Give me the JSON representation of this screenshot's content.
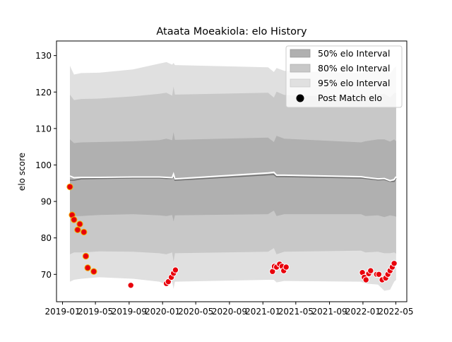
{
  "chart_data": {
    "type": "line",
    "title": "Ataata Moeakiola: elo History",
    "xlabel": "",
    "ylabel": "elo score",
    "xlim": [
      "2018-12-10",
      "2022-06-10"
    ],
    "ylim": [
      62.5,
      134
    ],
    "x_ticks": [
      "2019-01",
      "2019-05",
      "2019-09",
      "2020-01",
      "2020-05",
      "2020-09",
      "2021-01",
      "2021-05",
      "2021-09",
      "2022-01",
      "2022-05"
    ],
    "y_ticks": [
      70,
      80,
      90,
      100,
      110,
      120,
      130
    ],
    "grid": false,
    "legend": {
      "position": "top-right",
      "entries": [
        "50% elo Interval",
        "80% elo Interval",
        "95% elo Interval",
        "Post Match elo"
      ]
    },
    "colors": {
      "band50": "#b0b0b0",
      "band80": "#c8c8c8",
      "band95": "#e0e0e0",
      "mean_line": "#707070",
      "median_line": "#ffffff",
      "marker_fill": "#e8000b",
      "marker_early_fill": "#e8000b",
      "marker_early_edge": "#f0b000",
      "marker_edge": "#ffffff"
    },
    "bands": {
      "dates": [
        "2019-01-28",
        "2019-02-12",
        "2019-03-10",
        "2019-05-15",
        "2019-09-15",
        "2019-12-20",
        "2020-01-15",
        "2020-02-05",
        "2020-02-10",
        "2020-02-15",
        "2021-01-20",
        "2021-02-10",
        "2021-02-20",
        "2021-03-20",
        "2021-12-25",
        "2022-01-10",
        "2022-02-25",
        "2022-03-20",
        "2022-04-10",
        "2022-04-25",
        "2022-05-02"
      ],
      "upper95": [
        127.2,
        124.8,
        125.2,
        125.3,
        126.2,
        127.8,
        128.2,
        127.5,
        128,
        127.4,
        126.8,
        125.5,
        126.6,
        125.8,
        125.2,
        125.5,
        126.2,
        126.4,
        125,
        126.6,
        127
      ],
      "upper80": [
        119.3,
        117.8,
        118.1,
        118.2,
        118.8,
        119.5,
        119.8,
        119,
        121.5,
        119.3,
        119.8,
        118.5,
        120.1,
        119.2,
        118.5,
        118.8,
        119.3,
        119.5,
        118.5,
        119.7,
        119.8
      ],
      "upper50": [
        107,
        106,
        106.2,
        106.3,
        106.5,
        106.8,
        107.2,
        106.8,
        109,
        106.9,
        107.5,
        106.3,
        108,
        107.2,
        106.2,
        106.5,
        107,
        107,
        106.4,
        107,
        106.5
      ],
      "lower50": [
        85.5,
        86,
        86,
        86.3,
        86.5,
        86.2,
        86,
        86.3,
        84.5,
        86.2,
        86.5,
        87.5,
        86,
        86.5,
        86.5,
        86,
        86.2,
        85.7,
        86.2,
        86,
        85.8
      ],
      "lower80": [
        75.5,
        76,
        76,
        76.3,
        76.2,
        75.8,
        75.5,
        76,
        73.5,
        75.8,
        76.2,
        77.2,
        75.5,
        76.2,
        76.5,
        76,
        76.2,
        75.8,
        75.8,
        76,
        75.7
      ],
      "lower95": [
        68,
        68.5,
        68.8,
        69.2,
        68.8,
        68,
        67.2,
        68,
        66,
        68,
        68.5,
        68.5,
        67.8,
        68.2,
        68,
        67.5,
        67.2,
        65.5,
        65.8,
        68,
        68.5
      ],
      "mean": [
        95.8,
        95.8,
        96.2,
        96.3,
        96.4,
        96.4,
        96.3,
        96.3,
        96.7,
        95.8,
        97.3,
        97.4,
        96.8,
        96.8,
        96.4,
        96.3,
        95.9,
        96,
        95.5,
        95.5,
        96.4
      ],
      "median": [
        97,
        96.5,
        96.6,
        96.6,
        96.7,
        96.7,
        96.6,
        96.5,
        97.5,
        96.2,
        97.8,
        98,
        97.2,
        97.2,
        96.8,
        96.6,
        96.2,
        96.3,
        95.7,
        96,
        96.8
      ]
    },
    "series": [
      {
        "name": "Post Match elo",
        "points": [
          {
            "x": "2019-01-28",
            "y": 94,
            "early": true
          },
          {
            "x": "2019-02-05",
            "y": 86.3,
            "early": true
          },
          {
            "x": "2019-02-12",
            "y": 85,
            "early": true
          },
          {
            "x": "2019-02-25",
            "y": 82.2,
            "early": true
          },
          {
            "x": "2019-03-05",
            "y": 83.8,
            "early": true
          },
          {
            "x": "2019-03-20",
            "y": 81.6,
            "early": true
          },
          {
            "x": "2019-03-27",
            "y": 75,
            "early": true
          },
          {
            "x": "2019-04-03",
            "y": 71.8,
            "early": true
          },
          {
            "x": "2019-04-25",
            "y": 70.8,
            "early": true
          },
          {
            "x": "2019-09-07",
            "y": 67,
            "early": false
          },
          {
            "x": "2020-01-15",
            "y": 67.5,
            "early": false
          },
          {
            "x": "2020-01-22",
            "y": 68,
            "early": false
          },
          {
            "x": "2020-02-02",
            "y": 69.2,
            "early": false
          },
          {
            "x": "2020-02-10",
            "y": 70.3,
            "early": false
          },
          {
            "x": "2020-02-17",
            "y": 71.2,
            "early": false
          },
          {
            "x": "2021-02-05",
            "y": 70.8,
            "early": false
          },
          {
            "x": "2021-02-12",
            "y": 72.2,
            "early": false
          },
          {
            "x": "2021-02-20",
            "y": 72,
            "early": false
          },
          {
            "x": "2021-03-03",
            "y": 72.8,
            "early": false
          },
          {
            "x": "2021-03-12",
            "y": 72.2,
            "early": false
          },
          {
            "x": "2021-03-18",
            "y": 71,
            "early": false
          },
          {
            "x": "2021-03-27",
            "y": 72,
            "early": false
          },
          {
            "x": "2021-12-30",
            "y": 70.5,
            "early": false
          },
          {
            "x": "2022-01-06",
            "y": 69.2,
            "early": false
          },
          {
            "x": "2022-01-12",
            "y": 68.5,
            "early": false
          },
          {
            "x": "2022-01-22",
            "y": 70.2,
            "early": false
          },
          {
            "x": "2022-01-29",
            "y": 71,
            "early": false
          },
          {
            "x": "2022-02-20",
            "y": 70,
            "early": false
          },
          {
            "x": "2022-02-28",
            "y": 70,
            "early": false
          },
          {
            "x": "2022-03-12",
            "y": 68.5,
            "early": false
          },
          {
            "x": "2022-03-25",
            "y": 69,
            "early": false
          },
          {
            "x": "2022-04-02",
            "y": 70,
            "early": false
          },
          {
            "x": "2022-04-10",
            "y": 71,
            "early": false
          },
          {
            "x": "2022-04-18",
            "y": 72,
            "early": false
          },
          {
            "x": "2022-04-25",
            "y": 73,
            "early": false
          }
        ]
      }
    ]
  }
}
